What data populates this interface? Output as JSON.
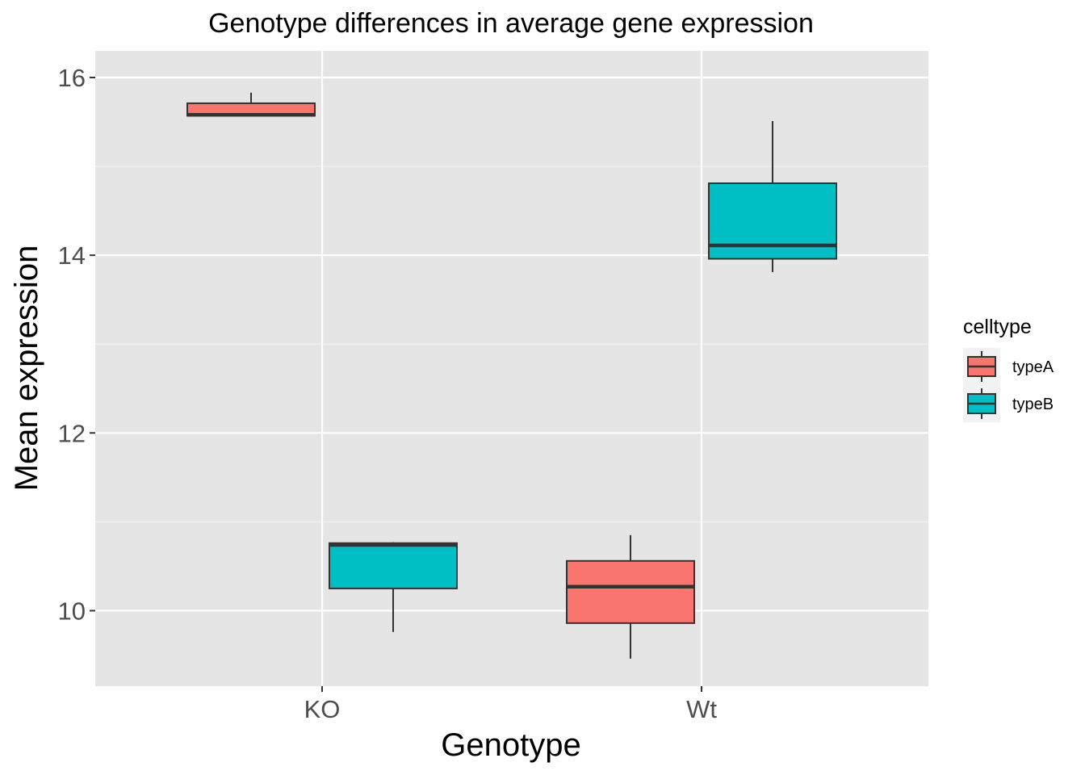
{
  "chart_data": {
    "type": "box",
    "title": "Genotype differences in average gene expression",
    "xlabel": "Genotype",
    "ylabel": "Mean expression",
    "categories": [
      "KO",
      "Wt"
    ],
    "ylim": [
      9.15,
      16.3
    ],
    "yticks": [
      "10",
      "12",
      "14",
      "16"
    ],
    "grid": true,
    "legend": {
      "title": "celltype",
      "position": "right"
    },
    "series": [
      {
        "name": "typeA",
        "color": "#F8766D",
        "boxes": [
          {
            "category": "KO",
            "min": 15.57,
            "q1": 15.57,
            "median": 15.58,
            "q3": 15.71,
            "max": 15.83
          },
          {
            "category": "Wt",
            "min": 9.46,
            "q1": 9.86,
            "median": 10.27,
            "q3": 10.56,
            "max": 10.85
          }
        ]
      },
      {
        "name": "typeB",
        "color": "#00BFC4",
        "boxes": [
          {
            "category": "KO",
            "min": 9.76,
            "q1": 10.25,
            "median": 10.74,
            "q3": 10.76,
            "max": 10.77
          },
          {
            "category": "Wt",
            "min": 13.81,
            "q1": 13.96,
            "median": 14.11,
            "q3": 14.81,
            "max": 15.51
          }
        ]
      }
    ]
  }
}
